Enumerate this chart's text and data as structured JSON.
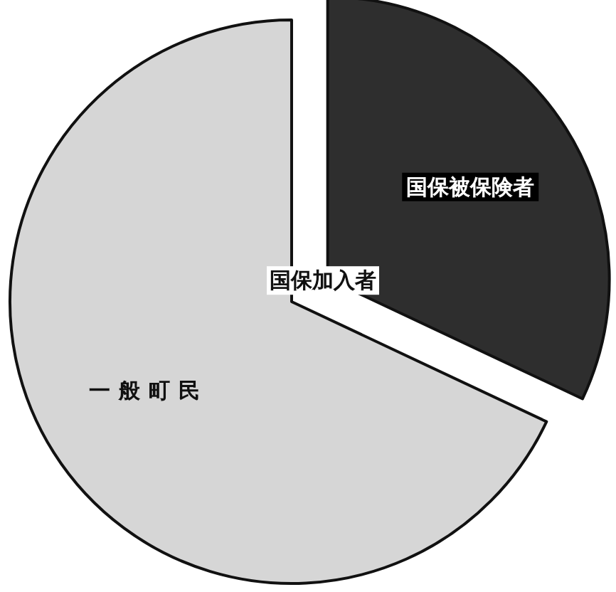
{
  "chart_data": {
    "type": "pie",
    "categories": [
      "国保被保険者",
      "一般町民"
    ],
    "values": [
      32,
      68
    ],
    "colors": [
      "#2e2e2e",
      "#d6d6d6"
    ],
    "annotations": [
      "国保加入者"
    ]
  }
}
